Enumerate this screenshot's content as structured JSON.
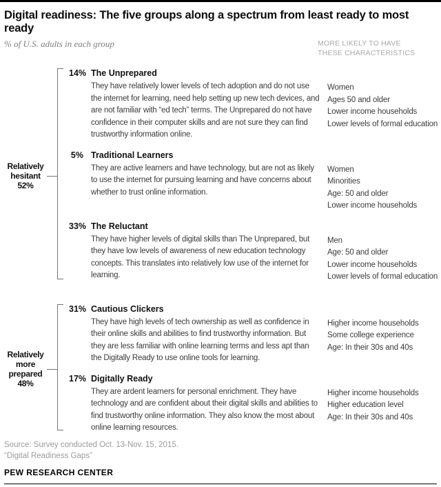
{
  "header": {
    "title": "Digital readiness: The five groups along a spectrum from least ready to most ready",
    "subtitle": "% of U.S. adults in each group",
    "right_col_header": "MORE LIKELY TO HAVE THESE CHARACTERISTICS"
  },
  "chart_data": {
    "type": "table",
    "title": "Digital readiness: The five groups along a spectrum from least ready to most ready",
    "subtitle": "% of U.S. adults in each group",
    "categories": [
      "The Unprepared",
      "Traditional Learners",
      "The Reluctant",
      "Cautious Clickers",
      "Digitally Ready"
    ],
    "values": [
      14,
      5,
      33,
      31,
      17
    ],
    "group_totals": [
      {
        "label": "Relatively hesitant",
        "value": 52
      },
      {
        "label": "Relatively more prepared",
        "value": 48
      }
    ]
  },
  "groups": [
    {
      "label": "Relatively hesitant",
      "pct": "52%",
      "entries": [
        {
          "pct": "14%",
          "name": "The Unprepared",
          "description": "They have relatively lower levels of tech adoption and do not use the internet for learning, need help setting up new tech devices, and are not familiar with “ed tech” terms. The Unprepared do not have confidence in their computer skills and are not sure they can find trustworthy information online.",
          "characteristics": [
            "Women",
            "Ages 50 and older",
            "Lower income households",
            "Lower levels of formal education"
          ]
        },
        {
          "pct": "5%",
          "name": "Traditional Learners",
          "description": "They are active learners and have technology, but are not as likely to use the internet for pursuing learning and have concerns about whether to trust online information.",
          "characteristics": [
            "Women",
            "Minorities",
            "Age: 50 and older",
            "Lower income households"
          ]
        },
        {
          "pct": "33%",
          "name": "The Reluctant",
          "description": "They have higher levels of digital skills than The Unprepared, but they have low levels of awareness of new education technology concepts. This translates into relatively low use of the internet for learning.",
          "characteristics": [
            "Men",
            "Age: 50 and older",
            "Lower income households",
            "Lower levels of formal education"
          ]
        }
      ]
    },
    {
      "label": "Relatively more prepared",
      "pct": "48%",
      "entries": [
        {
          "pct": "31%",
          "name": "Cautious Clickers",
          "description": "They have high levels of tech ownership as well as confidence in their online skills and abilities to find trustworthy information. But they are less familiar with online learning terms and less apt than the Digitally Ready to use online tools for learning.",
          "characteristics": [
            "Higher income households",
            "Some college experience",
            "Age: In their 30s and 40s"
          ]
        },
        {
          "pct": "17%",
          "name": "Digitally Ready",
          "description": "They are ardent learners for personal enrichment. They have technology and are confident about their digital skills and abilities to find trustworthy online information. They also know the most about online learning resources.",
          "characteristics": [
            "Higher income households",
            "Higher education level",
            "Age: In their 30s and 40s"
          ]
        }
      ]
    }
  ],
  "footer": {
    "source_line1": "Source: Survey conducted Oct. 13-Nov. 15, 2015.",
    "source_line2": "“Digital Readiness Gaps”",
    "brand": "PEW RESEARCH CENTER"
  },
  "colors": {
    "rule": "#000000",
    "body_text": "#3b3b3b",
    "muted_text": "#9b9b9b",
    "column_header": "#a9a9a9",
    "bracket": "#757575"
  }
}
